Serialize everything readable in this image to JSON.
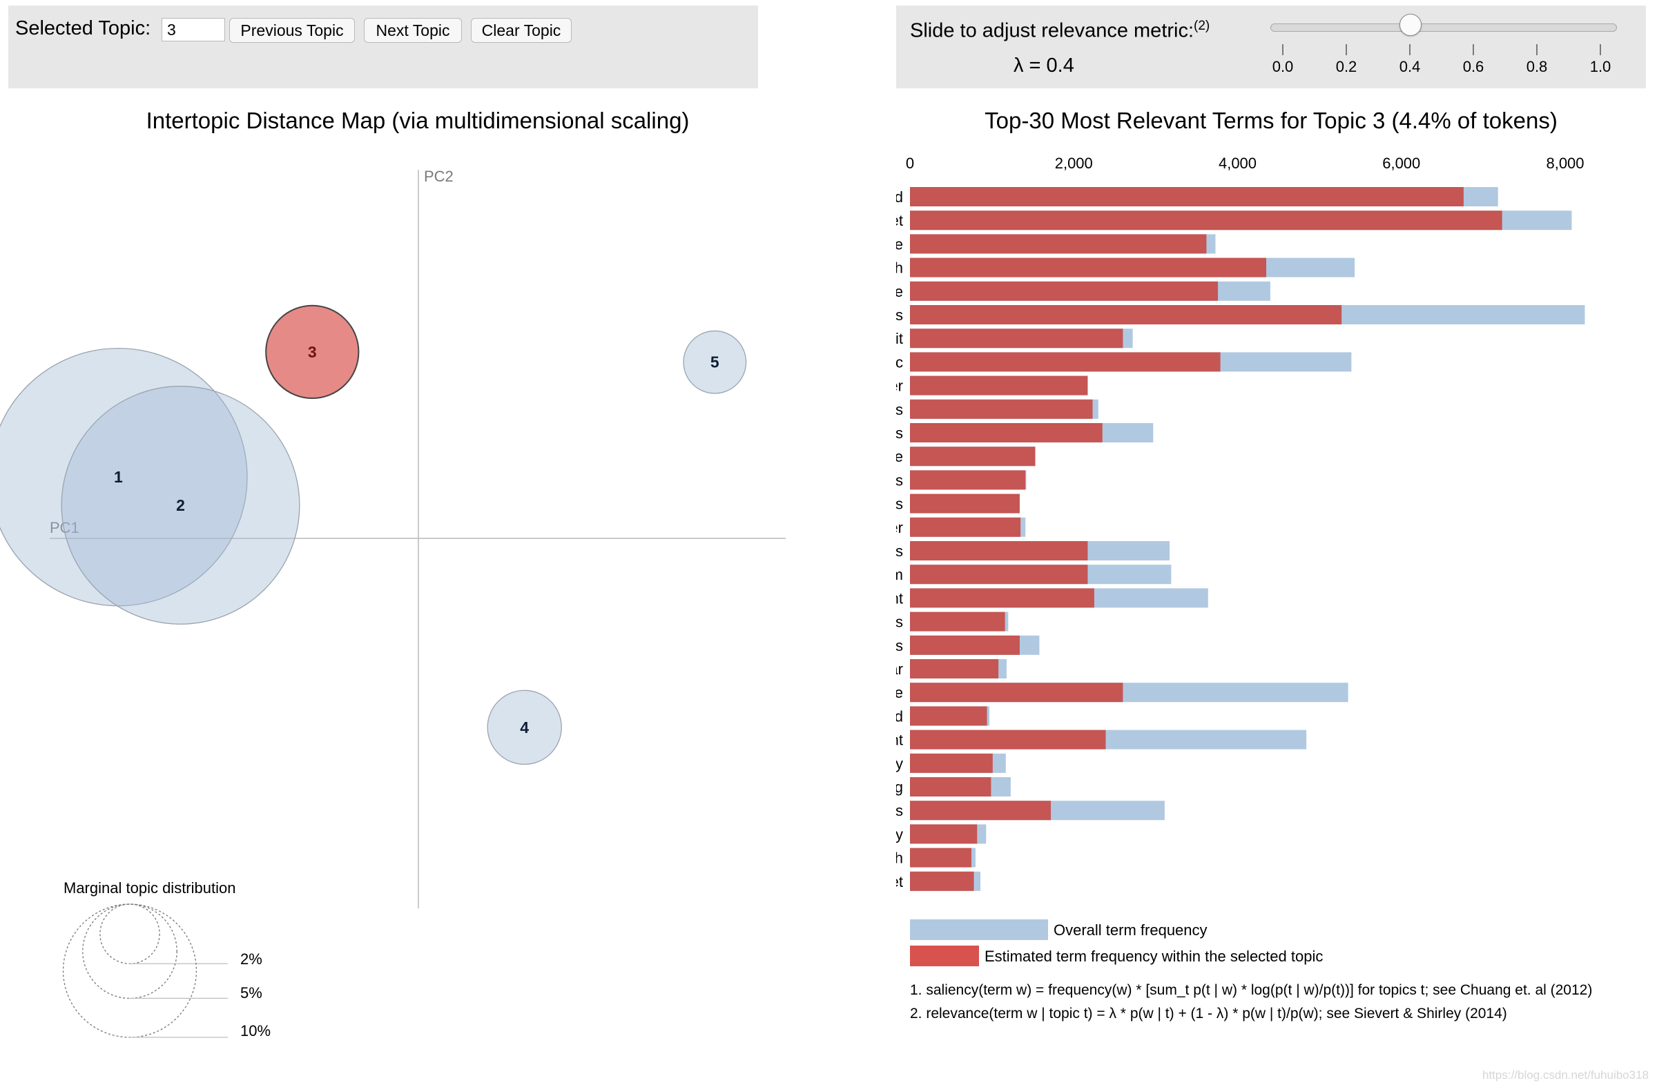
{
  "controls": {
    "selected_topic_label": "Selected Topic:",
    "selected_topic_value": "3",
    "previous_button": "Previous Topic",
    "next_button": "Next Topic",
    "clear_button": "Clear Topic",
    "slider_label": "Slide to adjust relevance metric:",
    "slider_footnote": "(2)",
    "lambda_text": "λ = 0.4",
    "lambda_value": 0.4,
    "slider_ticks": [
      "0.0",
      "0.2",
      "0.4",
      "0.6",
      "0.8",
      "1.0"
    ]
  },
  "chart_data": [
    {
      "type": "scatter",
      "title": "Intertopic Distance Map (via multidimensional scaling)",
      "xlabel": "PC1",
      "ylabel": "PC2",
      "xlim": [
        -1,
        1
      ],
      "ylim": [
        -1,
        1
      ],
      "selected_topic": 3,
      "topics": [
        {
          "id": 1,
          "x": -0.82,
          "y": 0.24,
          "size_pct": 34.0
        },
        {
          "id": 2,
          "x": -0.65,
          "y": 0.13,
          "size_pct": 29.0
        },
        {
          "id": 3,
          "x": -0.29,
          "y": 0.73,
          "size_pct": 4.4
        },
        {
          "id": 4,
          "x": 0.29,
          "y": -0.74,
          "size_pct": 2.8
        },
        {
          "id": 5,
          "x": 0.81,
          "y": 0.69,
          "size_pct": 2.0
        }
      ],
      "marginal_legend": {
        "title": "Marginal topic distribution",
        "labels": [
          "2%",
          "5%",
          "10%"
        ],
        "values": [
          2,
          5,
          10
        ]
      }
    },
    {
      "type": "bar",
      "orientation": "horizontal",
      "title": "Top-30 Most Relevant Terms for Topic 3 (4.4% of tokens)",
      "xlim": [
        0,
        8300
      ],
      "x_ticks": [
        0,
        2000,
        4000,
        6000,
        8000
      ],
      "x_tick_labels": [
        "0",
        "2,000",
        "4,000",
        "6,000",
        "8,000"
      ],
      "categories": [
        "word",
        "regret",
        "game",
        "speech",
        "language",
        "words",
        "bandit",
        "topic",
        "player",
        "games",
        "agents",
        "sentence",
        "players",
        "sentences",
        "speaker",
        "topics",
        "arm",
        "document",
        "bandits",
        "corpus",
        "grammar",
        "source",
        "armed",
        "agent",
        "vocabulary",
        "eeg",
        "documents",
        "adversary",
        "english",
        "market"
      ],
      "series": [
        {
          "name": "Overall term frequency",
          "color": "#b0c9e1",
          "values": [
            7180,
            8080,
            3730,
            5430,
            4400,
            8240,
            2720,
            5390,
            2170,
            2300,
            2970,
            1530,
            1420,
            1340,
            1410,
            3170,
            3190,
            3640,
            1200,
            1580,
            1180,
            5350,
            970,
            4840,
            1170,
            1230,
            3110,
            930,
            800,
            860
          ]
        },
        {
          "name": "Estimated term frequency within the selected topic",
          "color": "#c55653",
          "values": [
            6760,
            7230,
            3620,
            4350,
            3760,
            5270,
            2600,
            3790,
            2170,
            2230,
            2350,
            1530,
            1410,
            1340,
            1350,
            2170,
            2170,
            2250,
            1160,
            1340,
            1080,
            2600,
            940,
            2390,
            1010,
            990,
            1720,
            820,
            750,
            780
          ]
        }
      ],
      "notes": [
        "1. saliency(term w) = frequency(w) * [sum_t p(t | w) * log(p(t | w)/p(t))] for topics t; see Chuang et. al (2012)",
        "2. relevance(term w | topic t) = λ * p(w | t) + (1 - λ) * p(w | t)/p(w); see Sievert & Shirley (2014)"
      ]
    }
  ],
  "colors": {
    "topic_default": "#9fb9d4",
    "topic_selected": "#d8534e",
    "overall_bar": "#b0c9e1",
    "topic_bar": "#c55653",
    "panel_bg": "#e7e7e7"
  },
  "watermark": "https://blog.csdn.net/fuhuibo318"
}
